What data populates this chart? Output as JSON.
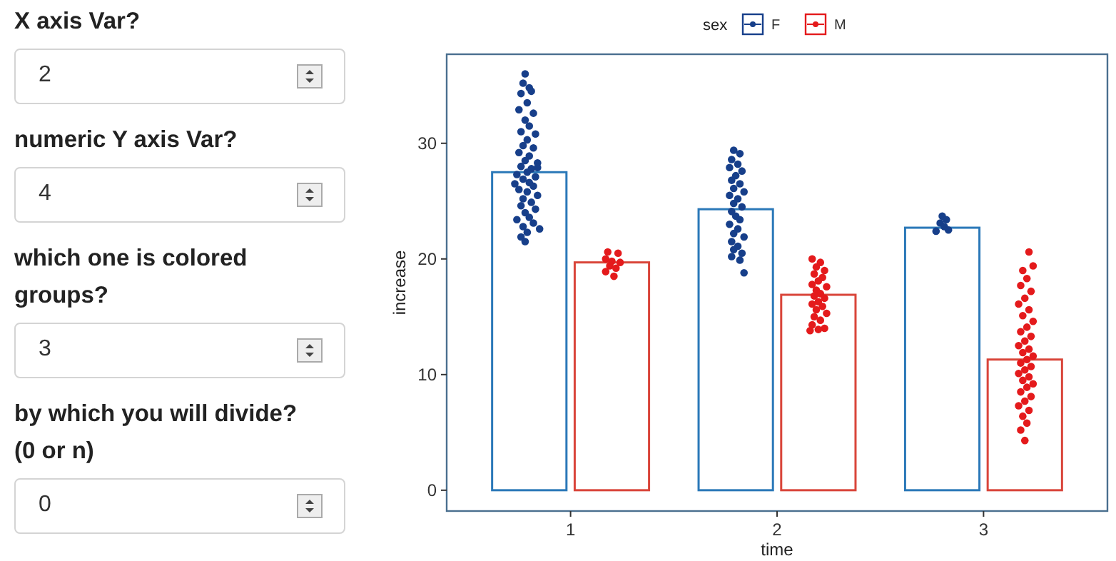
{
  "chart_data": [
    {
      "type": "other",
      "annotations": [
        "X axis Var?",
        "2",
        "numeric Y axis Var?",
        "4",
        "which one is colored groups?",
        "3",
        "by which you will divide?(0 or n)",
        "0"
      ]
    },
    {
      "type": "bar",
      "xlabel": "time",
      "ylabel": "increase",
      "legend_title": "sex",
      "legend": "top",
      "marker": "circle",
      "xlim": [
        0.4,
        3.6
      ],
      "xticks": [
        1,
        2,
        3
      ],
      "ylim": [
        -1.8,
        37.7
      ],
      "yticks": [
        0,
        10,
        20,
        30
      ],
      "series": [
        {
          "type": "bar",
          "color": "#2a78b8",
          "x": [
            0.8,
            1.8,
            2.8
          ],
          "values": [
            27.5,
            24.3,
            22.7
          ]
        },
        {
          "type": "bar",
          "color": "#d9453a",
          "x": [
            1.2,
            2.2,
            3.2
          ],
          "values": [
            19.7,
            16.9,
            11.3
          ]
        },
        {
          "type": "scatter",
          "name": "F",
          "color": "#173f8a",
          "x": [
            0.78,
            0.77,
            0.8,
            0.76,
            0.81,
            0.79,
            0.75,
            0.82,
            0.78,
            0.8,
            0.76,
            0.83,
            0.79,
            0.77,
            0.82,
            0.75,
            0.8,
            0.78,
            0.84,
            0.76,
            0.81,
            0.79,
            0.74,
            0.83,
            0.77,
            0.8,
            0.82,
            0.75,
            0.79,
            0.84,
            0.77,
            0.81,
            0.76,
            0.83,
            0.78,
            0.8,
            0.74,
            0.82,
            0.77,
            0.85,
            0.79,
            0.76,
            0.78,
            0.84,
            0.73,
            1.79,
            1.82,
            1.78,
            1.81,
            1.77,
            1.83,
            1.8,
            1.78,
            1.82,
            1.79,
            1.84,
            1.77,
            1.81,
            1.79,
            1.83,
            1.78,
            1.8,
            1.82,
            1.77,
            1.81,
            1.79,
            1.84,
            1.78,
            1.81,
            1.79,
            1.83,
            1.78,
            1.82,
            1.84,
            2.8,
            2.82,
            2.79,
            2.81,
            2.77,
            2.83
          ],
          "values": [
            36.0,
            35.2,
            34.8,
            34.3,
            34.5,
            33.5,
            32.9,
            32.6,
            32.0,
            31.5,
            31.0,
            30.8,
            30.3,
            29.8,
            29.6,
            29.2,
            28.9,
            28.5,
            28.3,
            28.0,
            27.8,
            27.5,
            27.3,
            27.1,
            26.9,
            26.6,
            26.3,
            26.0,
            25.8,
            25.5,
            25.2,
            24.9,
            24.6,
            24.3,
            24.0,
            23.6,
            23.4,
            23.1,
            22.8,
            22.6,
            22.3,
            21.9,
            21.5,
            27.9,
            26.5,
            29.4,
            29.1,
            28.6,
            28.2,
            27.9,
            27.6,
            27.2,
            26.8,
            26.5,
            26.1,
            25.8,
            25.5,
            25.2,
            24.8,
            24.5,
            24.1,
            23.7,
            23.4,
            23.0,
            22.6,
            22.2,
            21.9,
            21.5,
            21.1,
            20.8,
            20.5,
            20.2,
            19.9,
            18.8,
            23.7,
            23.4,
            23.1,
            22.8,
            22.4,
            22.5
          ]
        },
        {
          "type": "scatter",
          "name": "M",
          "color": "#e41a1c",
          "x": [
            1.18,
            1.23,
            1.17,
            1.2,
            1.24,
            1.19,
            1.22,
            1.17,
            1.21,
            2.17,
            2.21,
            2.19,
            2.23,
            2.18,
            2.22,
            2.2,
            2.17,
            2.24,
            2.19,
            2.21,
            2.18,
            2.23,
            2.2,
            2.17,
            2.22,
            2.19,
            2.24,
            2.18,
            2.21,
            2.17,
            2.23,
            2.16,
            2.2,
            3.22,
            3.24,
            3.19,
            3.21,
            3.18,
            3.23,
            3.2,
            3.17,
            3.22,
            3.19,
            3.24,
            3.21,
            3.18,
            3.23,
            3.2,
            3.17,
            3.22,
            3.19,
            3.24,
            3.21,
            3.18,
            3.23,
            3.2,
            3.17,
            3.22,
            3.19,
            3.24,
            3.21,
            3.18,
            3.23,
            3.2,
            3.17,
            3.22,
            3.19,
            3.21,
            3.18,
            3.2
          ],
          "values": [
            20.6,
            20.5,
            20.0,
            19.8,
            19.7,
            19.4,
            19.2,
            18.9,
            18.5,
            20.0,
            19.7,
            19.3,
            19.0,
            18.7,
            18.4,
            18.1,
            17.8,
            17.6,
            17.3,
            17.0,
            16.8,
            16.6,
            16.3,
            16.1,
            15.9,
            15.6,
            15.3,
            15.0,
            14.7,
            14.3,
            14.0,
            13.8,
            13.9,
            20.6,
            19.4,
            19.0,
            18.3,
            17.7,
            17.2,
            16.6,
            16.1,
            15.6,
            15.1,
            14.6,
            14.1,
            13.7,
            13.3,
            12.9,
            12.5,
            12.2,
            11.9,
            11.6,
            11.3,
            11.0,
            10.7,
            10.4,
            10.1,
            9.8,
            9.5,
            9.2,
            8.9,
            8.5,
            8.1,
            7.7,
            7.3,
            6.9,
            6.4,
            5.8,
            5.2,
            4.3
          ]
        }
      ]
    }
  ]
}
